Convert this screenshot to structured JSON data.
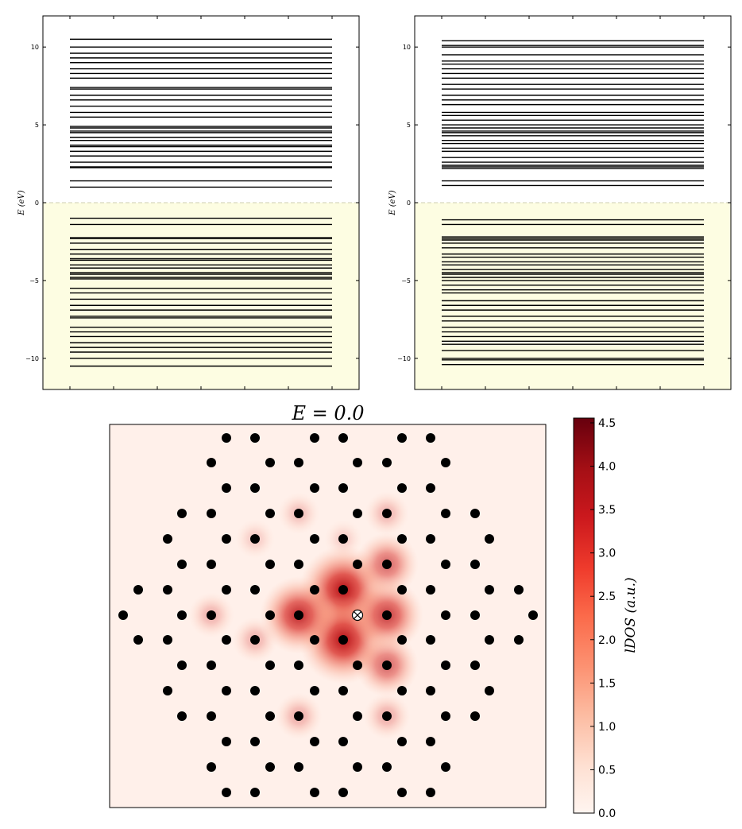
{
  "chart_data": [
    {
      "type": "spectrum",
      "ylabel": "E (eV)",
      "ylim": [
        -12,
        12
      ],
      "yticks": [
        -10,
        -5,
        0,
        5,
        10
      ],
      "fermi_level": 0,
      "occupied_shading": "#fdfde2",
      "levels": [
        1.0,
        1.4,
        2.25,
        2.3,
        2.6,
        3.0,
        3.3,
        3.6,
        3.7,
        4.0,
        4.2,
        4.5,
        4.6,
        4.8,
        4.9,
        5.5,
        5.8,
        6.2,
        6.6,
        6.9,
        7.3,
        7.4,
        8.0,
        8.3,
        8.6,
        9.0,
        9.3,
        9.6,
        10.0,
        10.5,
        -1.0,
        -1.4,
        -2.25,
        -2.3,
        -2.6,
        -3.0,
        -3.3,
        -3.6,
        -3.7,
        -4.0,
        -4.2,
        -4.5,
        -4.6,
        -4.8,
        -4.9,
        -5.5,
        -5.8,
        -6.2,
        -6.6,
        -6.9,
        -7.3,
        -7.4,
        -8.0,
        -8.3,
        -8.6,
        -9.0,
        -9.3,
        -9.6,
        -10.0,
        -10.5
      ]
    },
    {
      "type": "spectrum",
      "ylabel": "E (eV)",
      "ylim": [
        -12,
        12
      ],
      "yticks": [
        -10,
        -5,
        0,
        5,
        10
      ],
      "fermi_level": 0,
      "occupied_shading": "#fdfde2",
      "levels": [
        1.1,
        1.4,
        2.2,
        2.3,
        2.4,
        2.6,
        2.9,
        3.3,
        3.5,
        3.8,
        4.0,
        4.3,
        4.5,
        4.6,
        4.8,
        5.0,
        5.3,
        5.6,
        5.8,
        6.3,
        6.6,
        6.9,
        7.3,
        7.6,
        8.0,
        8.3,
        8.6,
        8.9,
        9.1,
        9.5,
        10.0,
        10.1,
        10.4,
        -1.1,
        -1.4,
        -2.2,
        -2.3,
        -2.4,
        -2.6,
        -2.9,
        -3.3,
        -3.5,
        -3.8,
        -4.0,
        -4.3,
        -4.5,
        -4.6,
        -4.8,
        -5.0,
        -5.3,
        -5.6,
        -5.8,
        -6.3,
        -6.6,
        -6.9,
        -7.3,
        -7.6,
        -8.0,
        -8.3,
        -8.6,
        -8.9,
        -9.1,
        -9.5,
        -10.0,
        -10.1,
        -10.4
      ]
    },
    {
      "type": "heatmap",
      "title": "E = 0.0",
      "colorbar_label": "lDOS (a.u.)",
      "colorbar_ticks": [
        "0.0",
        "0.5",
        "1.0",
        "1.5",
        "2.0",
        "2.5",
        "3.0",
        "3.5",
        "4.0",
        "4.5"
      ],
      "colorbar_range": [
        0,
        4.5
      ],
      "colormap": "Reds",
      "site_lattice": "honeycomb (graphene flake)",
      "marked_site": [
        0,
        0
      ],
      "ldos_peaks": [
        {
          "x": -0.5,
          "y": 0.866,
          "value": 4.5
        },
        {
          "x": -0.5,
          "y": -0.866,
          "value": 4.5
        },
        {
          "x": -2,
          "y": 0,
          "value": 3.6
        },
        {
          "x": 1,
          "y": 0,
          "value": 3.2
        },
        {
          "x": 1,
          "y": 1.732,
          "value": 2.4
        },
        {
          "x": 1,
          "y": -1.732,
          "value": 2.4
        },
        {
          "x": -2,
          "y": -3.464,
          "value": 1.0
        },
        {
          "x": 1,
          "y": -3.464,
          "value": 1.0
        },
        {
          "x": -2,
          "y": 3.464,
          "value": 0.6
        },
        {
          "x": 1,
          "y": 5.196,
          "value": 0.8
        },
        {
          "x": -3.5,
          "y": -0.866,
          "value": 0.9
        },
        {
          "x": -5,
          "y": 0,
          "value": 0.9
        },
        {
          "x": -3.5,
          "y": 2.598,
          "value": 0.4
        },
        {
          "x": -0.5,
          "y": 2.598,
          "value": 0.3
        }
      ]
    }
  ]
}
